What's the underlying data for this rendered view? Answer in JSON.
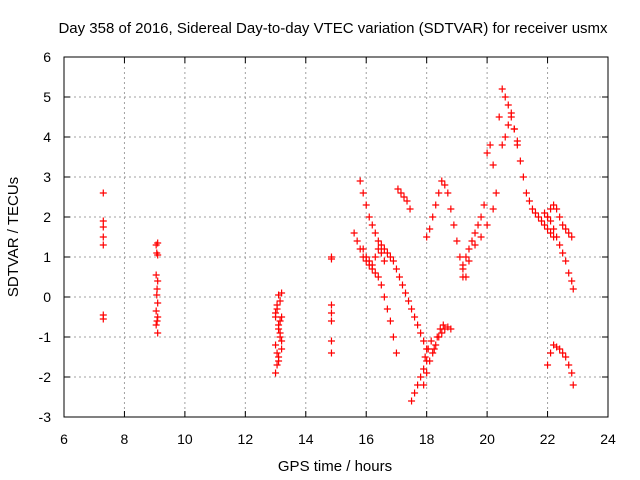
{
  "chart_data": {
    "type": "scatter",
    "title": "Day 358 of 2016, Sidereal Day-to-day VTEC variation (SDTVAR) for receiver usmx",
    "xlabel": "GPS time / hours",
    "ylabel": "SDTVAR / TECUs",
    "xlim": [
      6,
      24
    ],
    "ylim": [
      -3,
      6
    ],
    "xticks": [
      6,
      8,
      10,
      12,
      14,
      16,
      18,
      20,
      22,
      24
    ],
    "yticks": [
      -3,
      -2,
      -1,
      0,
      1,
      2,
      3,
      4,
      5,
      6
    ],
    "grid": true,
    "marker": "+",
    "marker_color": "#ff0000",
    "series": [
      {
        "name": "SDTVAR",
        "x": [
          7.3,
          7.3,
          7.3,
          7.3,
          7.3,
          7.3,
          7.3,
          9.05,
          9.1,
          9.07,
          9.1,
          9.05,
          9.1,
          9.08,
          9.07,
          9.1,
          9.05,
          9.1,
          9.05,
          9.08,
          9.1,
          13.0,
          13.05,
          13.1,
          13.0,
          13.15,
          13.1,
          13.2,
          13.05,
          13.15,
          13.1,
          13.2,
          13.05,
          13.0,
          13.15,
          13.2,
          13.1,
          13.05,
          13.2,
          13.1,
          13.0,
          13.15,
          14.85,
          14.85,
          14.85,
          14.85,
          14.85,
          14.85,
          14.85,
          15.6,
          15.7,
          15.8,
          15.9,
          16.0,
          16.1,
          16.2,
          16.3,
          16.4,
          16.5,
          16.6,
          16.7,
          16.8,
          16.9,
          17.0,
          15.8,
          15.9,
          16.0,
          16.1,
          16.2,
          16.3,
          16.4,
          16.5,
          16.6,
          16.7,
          16.8,
          16.9,
          17.0,
          17.1,
          17.2,
          17.3,
          17.4,
          17.5,
          17.6,
          17.7,
          17.8,
          17.9,
          18.0,
          15.9,
          16.0,
          16.1,
          16.2,
          16.3,
          16.4,
          16.5,
          16.6,
          17.05,
          17.15,
          17.25,
          17.35,
          17.45,
          17.5,
          17.6,
          17.7,
          17.8,
          17.9,
          18.0,
          17.9,
          18.0,
          18.1,
          18.2,
          18.3,
          18.4,
          18.5,
          18.6,
          18.7,
          18.8,
          17.95,
          18.05,
          18.15,
          18.25,
          18.35,
          18.45,
          18.55,
          18.0,
          18.1,
          18.2,
          18.3,
          18.4,
          18.5,
          18.6,
          18.7,
          18.8,
          18.9,
          19.0,
          19.1,
          19.2,
          19.3,
          19.2,
          19.3,
          19.4,
          19.5,
          19.6,
          19.7,
          19.8,
          19.9,
          19.2,
          19.4,
          19.6,
          19.8,
          20.0,
          20.2,
          20.3,
          20.0,
          20.1,
          20.2,
          20.4,
          20.5,
          20.6,
          20.7,
          20.8,
          20.9,
          21.0,
          21.1,
          21.2,
          21.3,
          21.4,
          21.5,
          21.6,
          21.7,
          21.8,
          21.9,
          22.0,
          22.1,
          22.2,
          20.5,
          20.6,
          20.7,
          20.8,
          20.9,
          21.0,
          22.0,
          22.1,
          22.2,
          22.3,
          22.4,
          22.5,
          22.6,
          22.7,
          22.8,
          21.9,
          22.0,
          22.1,
          22.2,
          22.3,
          22.4,
          22.5,
          22.6,
          22.7,
          22.8,
          22.85,
          22.0,
          22.1,
          22.2,
          22.3,
          22.4,
          22.5,
          22.6,
          22.7,
          22.8,
          22.85
        ],
        "y": [
          2.6,
          1.9,
          1.75,
          1.5,
          1.3,
          -0.45,
          -0.55,
          1.3,
          1.35,
          1.1,
          1.05,
          0.55,
          0.4,
          0.2,
          0.05,
          -0.15,
          -0.35,
          -0.5,
          -0.7,
          -0.6,
          -0.9,
          -1.9,
          -1.7,
          -1.5,
          -1.2,
          -0.9,
          -0.7,
          -0.5,
          -0.3,
          -0.1,
          0.05,
          0.1,
          -0.2,
          -0.5,
          -1.0,
          -1.3,
          -1.6,
          -1.4,
          -1.1,
          -0.8,
          -0.4,
          -0.6,
          1.0,
          0.95,
          -0.2,
          -0.4,
          -0.6,
          -1.1,
          -1.4,
          1.6,
          1.4,
          1.2,
          1.0,
          0.9,
          0.8,
          0.7,
          0.6,
          0.5,
          0.3,
          0.0,
          -0.3,
          -0.6,
          -1.0,
          -1.4,
          2.9,
          2.6,
          2.3,
          2.0,
          1.8,
          1.6,
          1.4,
          1.3,
          1.2,
          1.1,
          1.0,
          0.9,
          0.7,
          0.5,
          0.3,
          0.1,
          -0.1,
          -0.3,
          -0.5,
          -0.7,
          -0.9,
          -1.1,
          -1.3,
          1.2,
          1.0,
          0.9,
          0.8,
          1.0,
          1.2,
          1.1,
          0.9,
          2.7,
          2.6,
          2.5,
          2.4,
          2.2,
          -2.6,
          -2.4,
          -2.2,
          -2.0,
          -1.8,
          -1.6,
          -2.2,
          -1.9,
          -1.6,
          -1.4,
          -1.2,
          -1.0,
          -0.9,
          -0.8,
          -0.75,
          -0.8,
          -1.5,
          -1.3,
          -1.1,
          -1.3,
          -1.0,
          -0.8,
          -0.7,
          1.5,
          1.7,
          2.0,
          2.3,
          2.6,
          2.9,
          2.8,
          2.6,
          2.2,
          1.8,
          1.4,
          1.0,
          0.7,
          0.5,
          0.8,
          1.0,
          1.2,
          1.4,
          1.6,
          1.8,
          2.0,
          2.3,
          0.5,
          0.9,
          1.3,
          1.5,
          1.8,
          2.2,
          2.6,
          3.6,
          3.8,
          3.3,
          4.5,
          5.2,
          5.0,
          4.8,
          4.5,
          4.2,
          3.8,
          3.4,
          3.0,
          2.6,
          2.4,
          2.2,
          2.1,
          2.0,
          1.9,
          1.8,
          1.7,
          1.6,
          1.5,
          3.8,
          4.0,
          4.3,
          4.6,
          4.2,
          3.9,
          2.0,
          2.2,
          2.3,
          2.2,
          2.0,
          1.8,
          1.7,
          1.6,
          1.5,
          2.1,
          2.0,
          1.9,
          1.7,
          1.5,
          1.3,
          1.1,
          0.9,
          0.6,
          0.4,
          0.2,
          -1.7,
          -1.4,
          -1.2,
          -1.25,
          -1.3,
          -1.4,
          -1.5,
          -1.7,
          -1.9,
          -2.2
        ]
      }
    ]
  }
}
